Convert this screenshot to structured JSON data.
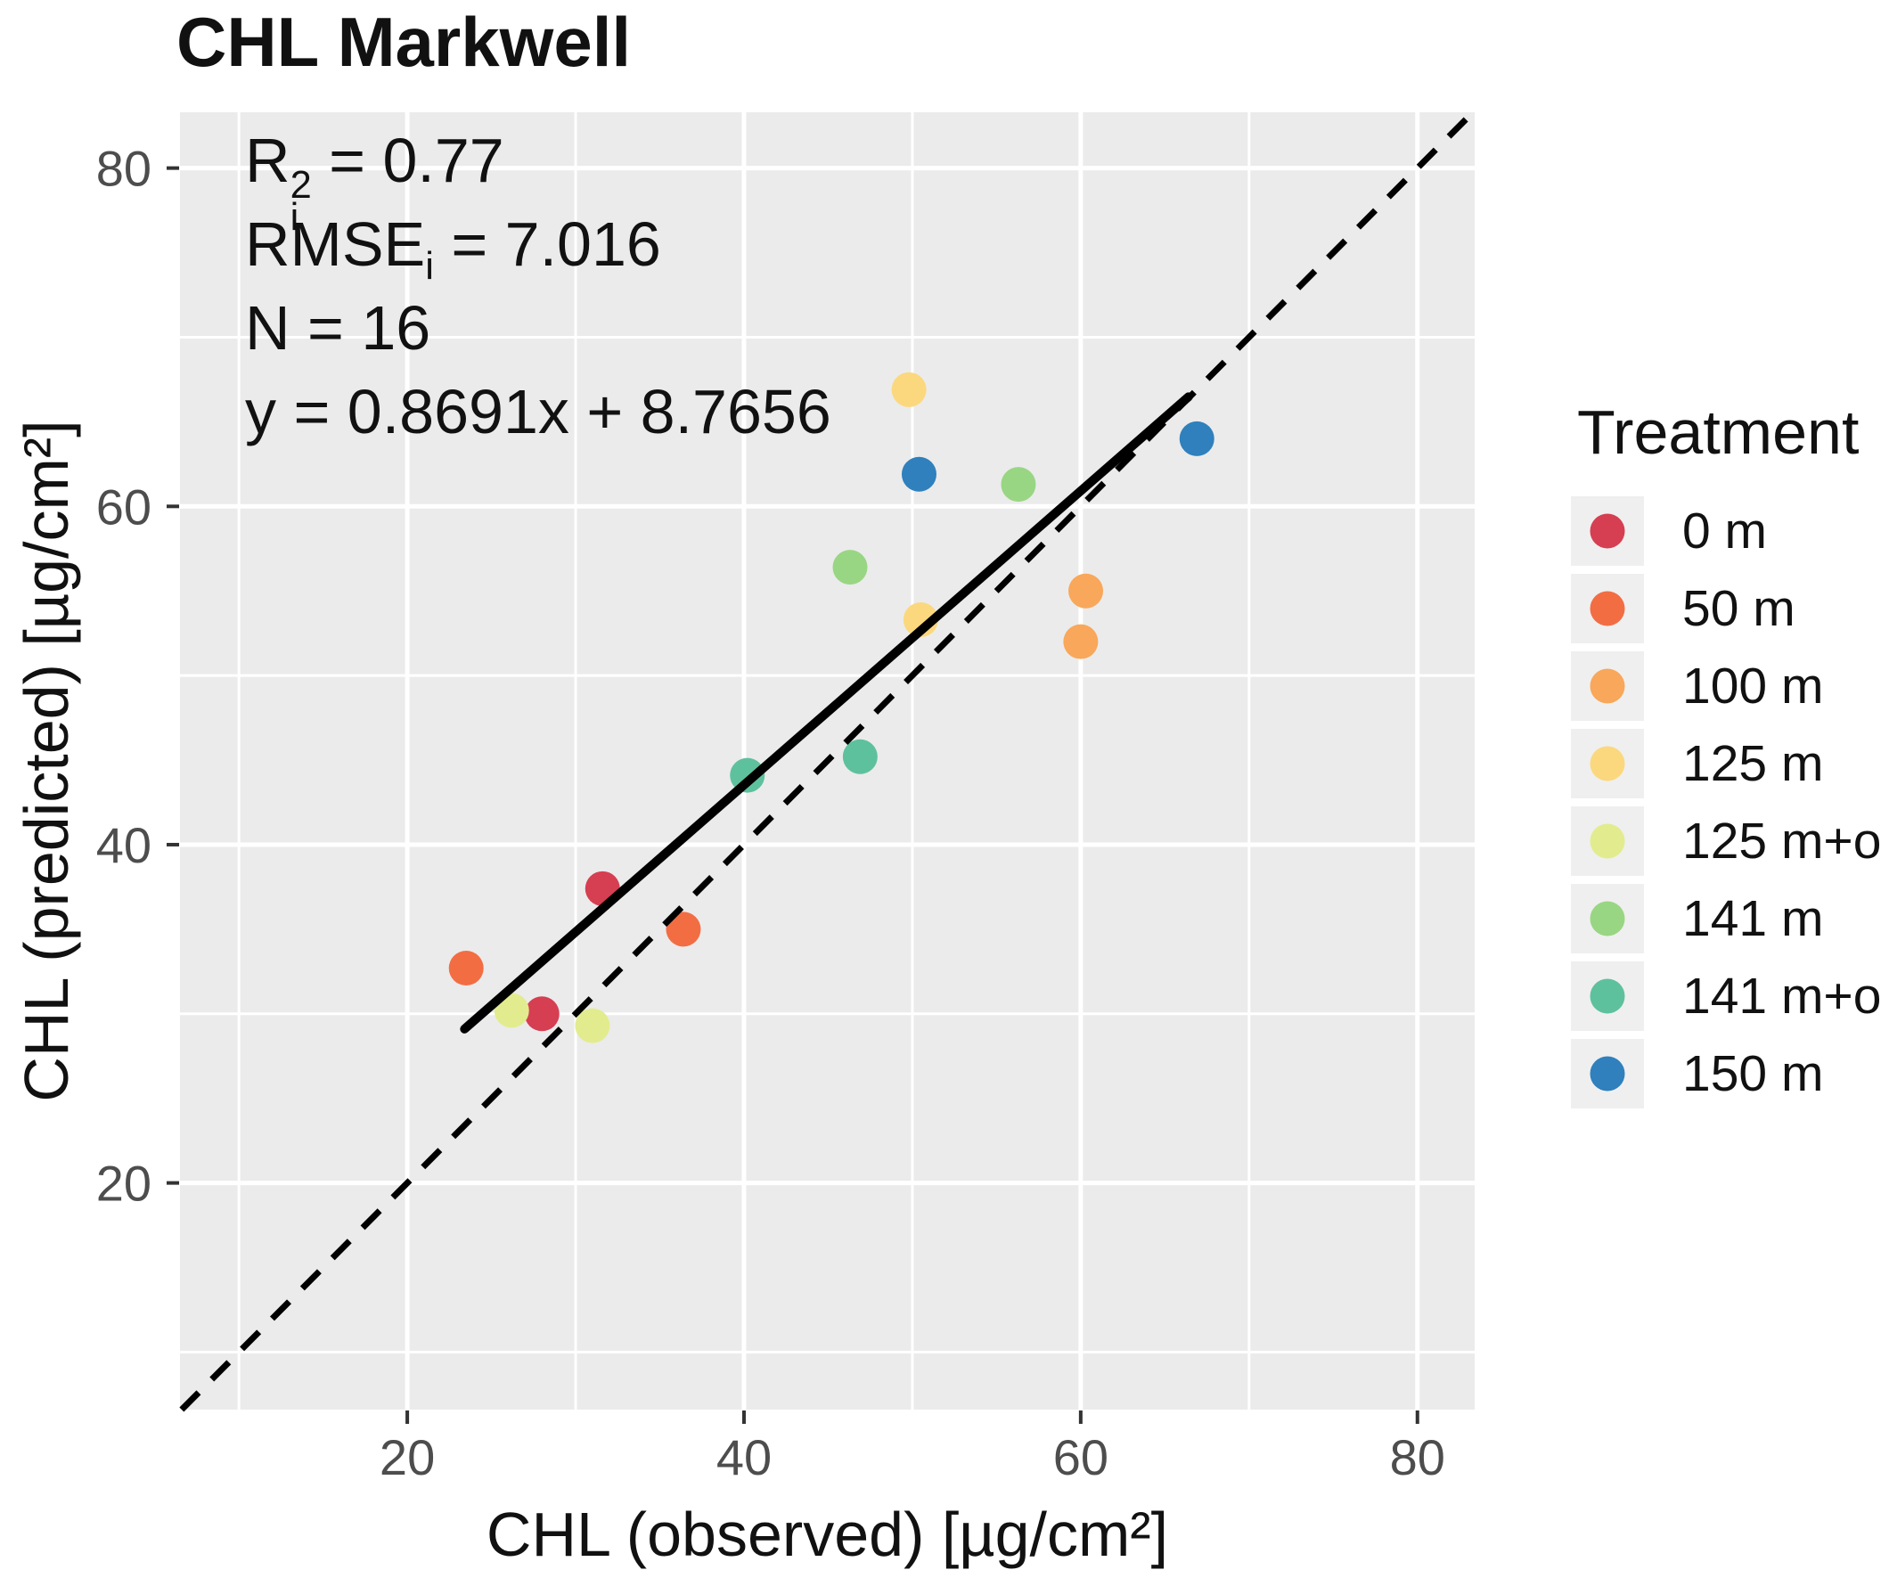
{
  "title": "CHL Markwell",
  "annotation": {
    "r2_base": "R",
    "r2_sup": "2",
    "r2_sub": "i",
    "r2_value": " = 0.77",
    "rmse_base": "RMSE",
    "rmse_sub": "i",
    "rmse_value": " = 7.016",
    "n_line": "N = 16",
    "equation_line": "y = 0.8691x + 8.7656"
  },
  "chart_data": {
    "type": "scatter",
    "title": "CHL Markwell",
    "xlabel": "CHL (observed) [µg/cm²]",
    "ylabel": "CHL (predicted) [µg/cm²]",
    "xlim": [
      6.5,
      83.4
    ],
    "ylim": [
      6.6,
      83.3
    ],
    "x_ticks": [
      20,
      40,
      60,
      80
    ],
    "y_ticks": [
      20,
      40,
      60,
      80
    ],
    "minor_gridlines": [
      10,
      30,
      50,
      70
    ],
    "grid": true,
    "panel_background": "#ebebeb",
    "gridline_color": "#ffffff",
    "tick_color": "#333333",
    "tick_label_color": "#4d4d4d",
    "legend_position": "right",
    "legend_title": "Treatment",
    "stats": {
      "r_squared": 0.77,
      "rmse": 7.016,
      "n": 16,
      "slope": 0.8691,
      "intercept": 8.7656
    },
    "identity_line": {
      "style": "dashed",
      "color": "#000000",
      "x_range": [
        6.6,
        83.3
      ]
    },
    "regression_line": {
      "style": "solid",
      "color": "#000000",
      "x_range": [
        23.4,
        66.4
      ]
    },
    "series": [
      {
        "name": "0 m",
        "color": "#d63e52",
        "points": [
          [
            31.6,
            37.4
          ],
          [
            28.0,
            30.0
          ]
        ]
      },
      {
        "name": "50 m",
        "color": "#f36d43",
        "points": [
          [
            23.5,
            32.7
          ],
          [
            36.4,
            35.0
          ]
        ]
      },
      {
        "name": "100 m",
        "color": "#f9a75a",
        "points": [
          [
            60.3,
            55.0
          ],
          [
            60.0,
            52.0
          ]
        ]
      },
      {
        "name": "125 m",
        "color": "#fbd87d",
        "points": [
          [
            49.8,
            66.9
          ],
          [
            50.5,
            53.3
          ]
        ]
      },
      {
        "name": "125 m+o",
        "color": "#e2ec8e",
        "points": [
          [
            26.2,
            30.2
          ],
          [
            31.0,
            29.3
          ]
        ]
      },
      {
        "name": "141 m",
        "color": "#99d683",
        "points": [
          [
            46.3,
            56.4
          ],
          [
            56.3,
            61.3
          ]
        ]
      },
      {
        "name": "141 m+o",
        "color": "#5ec19d",
        "points": [
          [
            40.2,
            44.1
          ],
          [
            46.9,
            45.2
          ]
        ]
      },
      {
        "name": "150 m",
        "color": "#2f80bd",
        "points": [
          [
            50.4,
            61.9
          ],
          [
            66.9,
            64.0
          ]
        ]
      }
    ]
  }
}
